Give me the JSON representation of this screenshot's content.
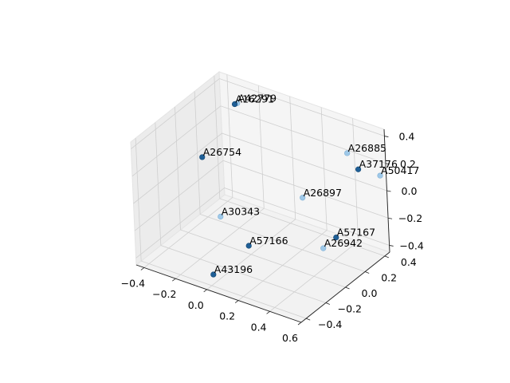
{
  "chart_data": {
    "type": "scatter",
    "projection": "3d",
    "grid": true,
    "x_ticks": [
      "−0.4",
      "−0.2",
      "0.0",
      "0.2",
      "0.4",
      "0.6"
    ],
    "y_ticks": [
      "−0.4",
      "−0.2",
      "0.0",
      "0.2",
      "0.4"
    ],
    "z_ticks": [
      "−0.4",
      "−0.2",
      "0.0",
      "0.2",
      "0.4"
    ],
    "xlim": [
      -0.45,
      0.6
    ],
    "ylim": [
      -0.45,
      0.45
    ],
    "zlim": [
      -0.45,
      0.45
    ],
    "colors": {
      "dark_point": "#1f5f96",
      "light_point": "#9ec8e8",
      "pane": "#f2f2f2",
      "grid": "#cfcfcf"
    },
    "points": [
      {
        "label": "A42779",
        "x": -0.25,
        "y": 0.31,
        "z": 0.38,
        "shade": "light"
      },
      {
        "label": "A16291",
        "x": -0.26,
        "y": 0.3,
        "z": 0.375,
        "shade": "dark"
      },
      {
        "label": "A26885",
        "x": 0.42,
        "y": 0.35,
        "z": 0.26,
        "shade": "light"
      },
      {
        "label": "A37176",
        "x": 0.52,
        "y": 0.3,
        "z": 0.21,
        "shade": "dark"
      },
      {
        "label": "A50417",
        "x": 0.62,
        "y": 0.36,
        "z": 0.17,
        "shade": "light"
      },
      {
        "label": "A26754",
        "x": -0.42,
        "y": 0.2,
        "z": -0.02,
        "shade": "dark"
      },
      {
        "label": "A26897",
        "x": 0.25,
        "y": 0.15,
        "z": -0.02,
        "shade": "light"
      },
      {
        "label": "A30343",
        "x": -0.22,
        "y": 0.05,
        "z": -0.29,
        "shade": "light"
      },
      {
        "label": "A57166",
        "x": 0.02,
        "y": -0.05,
        "z": -0.35,
        "shade": "dark"
      },
      {
        "label": "A57167",
        "x": 0.62,
        "y": -0.1,
        "z": -0.02,
        "shade": "dark"
      },
      {
        "label": "A26942",
        "x": 0.6,
        "y": -0.2,
        "z": -0.05,
        "shade": "light"
      },
      {
        "label": "A43196",
        "x": 0.0,
        "y": -0.38,
        "z": -0.38,
        "shade": "dark"
      }
    ]
  }
}
